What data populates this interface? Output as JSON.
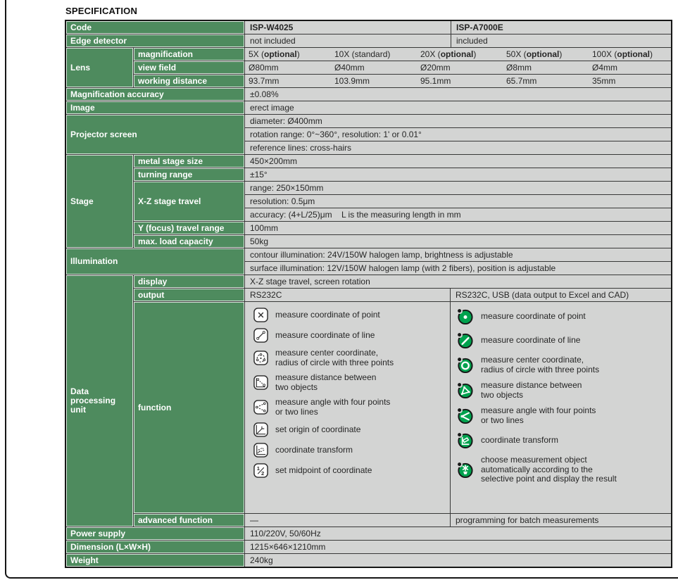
{
  "page": {
    "title": "SPECIFICATION"
  },
  "colors": {
    "header_green": "#4e8b5e",
    "cell_gray": "#d3d4d3",
    "icon_green": "#00a24e",
    "grid_dark": "#383838"
  },
  "table": {
    "code": {
      "label": "Code",
      "w4025": "ISP-W4025",
      "a7000e": "ISP-A7000E"
    },
    "edge_detector": {
      "label": "Edge detector",
      "w4025": "not included",
      "a7000e": "included"
    },
    "lens": {
      "label": "Lens",
      "magnification": {
        "label": "magnification",
        "values": [
          {
            "pre": "5X (",
            "em": "optional",
            "post": ")"
          },
          {
            "pre": "10X (standard)",
            "em": "",
            "post": ""
          },
          {
            "pre": "20X (",
            "em": "optional",
            "post": ")"
          },
          {
            "pre": "50X (",
            "em": "optional",
            "post": ")"
          },
          {
            "pre": "100X (",
            "em": "optional",
            "post": ")"
          }
        ]
      },
      "view_field": {
        "label": "view field",
        "values": [
          "Ø80mm",
          "Ø40mm",
          "Ø20mm",
          "Ø8mm",
          "Ø4mm"
        ]
      },
      "working_distance": {
        "label": "working distance",
        "values": [
          "93.7mm",
          "103.9mm",
          "95.1mm",
          "65.7mm",
          "35mm"
        ]
      }
    },
    "magnification_accuracy": {
      "label": "Magnification accuracy",
      "value": "±0.08%"
    },
    "image": {
      "label": "Image",
      "value": "erect image"
    },
    "projector_screen": {
      "label": "Projector screen",
      "values": [
        "diameter: Ø400mm",
        "rotation range: 0°~360°, resolution: 1' or 0.01°",
        "reference lines: cross-hairs"
      ]
    },
    "stage": {
      "label": "Stage",
      "metal_stage_size": {
        "label": "metal stage size",
        "value": "450×200mm"
      },
      "turning_range": {
        "label": "turning range",
        "value": "±15°"
      },
      "xz_stage_travel": {
        "label": "X-Z stage travel",
        "values": [
          "range: 250×150mm",
          "resolution: 0.5μm",
          "accuracy: (4+L/25)μm    L is the measuring length in mm"
        ]
      },
      "y_travel_range": {
        "label": "Y (focus) travel range",
        "value": "100mm"
      },
      "max_load": {
        "label": "max. load capacity",
        "value": "50kg"
      }
    },
    "illumination": {
      "label": "Illumination",
      "values": [
        "contour illumination: 24V/150W halogen lamp, brightness is adjustable",
        "surface illumination: 12V/150W halogen lamp (with 2 fibers), position is adjustable"
      ]
    },
    "data_processing": {
      "label": "Data processing unit",
      "display": {
        "label": "display",
        "value": "X-Z stage travel, screen rotation"
      },
      "output": {
        "label": "output",
        "w4025": "RS232C",
        "a7000e": "RS232C, USB (data output to Excel and CAD)"
      },
      "function": {
        "label": "function",
        "w4025": [
          {
            "icon": "point-square-icon",
            "text": "measure coordinate of point"
          },
          {
            "icon": "line-square-icon",
            "text": "measure coordinate of line"
          },
          {
            "icon": "circle-square-icon",
            "text": "measure center coordinate,\nradius of circle with three points"
          },
          {
            "icon": "distance-square-icon",
            "text": "measure distance between\ntwo objects"
          },
          {
            "icon": "angle-square-icon",
            "text": "measure angle with four points\nor two lines"
          },
          {
            "icon": "origin-square-icon",
            "text": "set origin of coordinate"
          },
          {
            "icon": "transform-square-icon",
            "text": "coordinate transform"
          },
          {
            "icon": "midpoint-square-icon",
            "text": "set midpoint of coordinate"
          }
        ],
        "a7000e": [
          {
            "icon": "point-circle-icon",
            "text": "measure coordinate of point"
          },
          {
            "icon": "line-circle-icon",
            "text": "measure coordinate of line"
          },
          {
            "icon": "circle-circle-icon",
            "text": "measure center coordinate,\nradius of circle with three points"
          },
          {
            "icon": "distance-circle-icon",
            "text": "measure distance between\ntwo objects"
          },
          {
            "icon": "angle-circle-icon",
            "text": "measure angle with four points\nor two lines"
          },
          {
            "icon": "transform-circle-icon",
            "text": "coordinate transform"
          },
          {
            "icon": "auto-circle-icon",
            "text": "choose measurement object\nautomatically according to the\nselective point and display the result"
          }
        ]
      },
      "advanced": {
        "label": "advanced function",
        "w4025": "—",
        "a7000e": "programming for batch measurements"
      }
    },
    "power_supply": {
      "label": "Power supply",
      "value": "110/220V, 50/60Hz"
    },
    "dimension": {
      "label": "Dimension (L×W×H)",
      "value": "1215×646×1210mm"
    },
    "weight": {
      "label": "Weight",
      "value": "240kg"
    }
  }
}
